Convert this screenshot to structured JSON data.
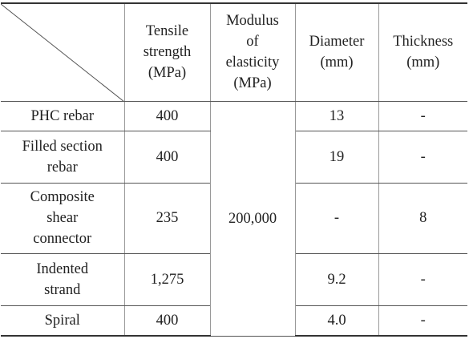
{
  "table": {
    "columns": [
      "Tensile\nstrength\n(MPa)",
      "Modulus\nof\nelasticity\n(MPa)",
      "Diameter\n(mm)",
      "Thickness\n(mm)"
    ],
    "modulus": "200,000",
    "rows": [
      {
        "label": "PHC  rebar",
        "tensile": "400",
        "diameter": "13",
        "thickness": "-"
      },
      {
        "label": "Filled section\nrebar",
        "tensile": "400",
        "diameter": "19",
        "thickness": "-"
      },
      {
        "label": "Composite\nshear\nconnector",
        "tensile": "235",
        "diameter": "-",
        "thickness": "8"
      },
      {
        "label": "Indented\nstrand",
        "tensile": "1,275",
        "diameter": "9.2",
        "thickness": "-"
      },
      {
        "label": "Spiral",
        "tensile": "400",
        "diameter": "4.0",
        "thickness": "-"
      }
    ]
  }
}
